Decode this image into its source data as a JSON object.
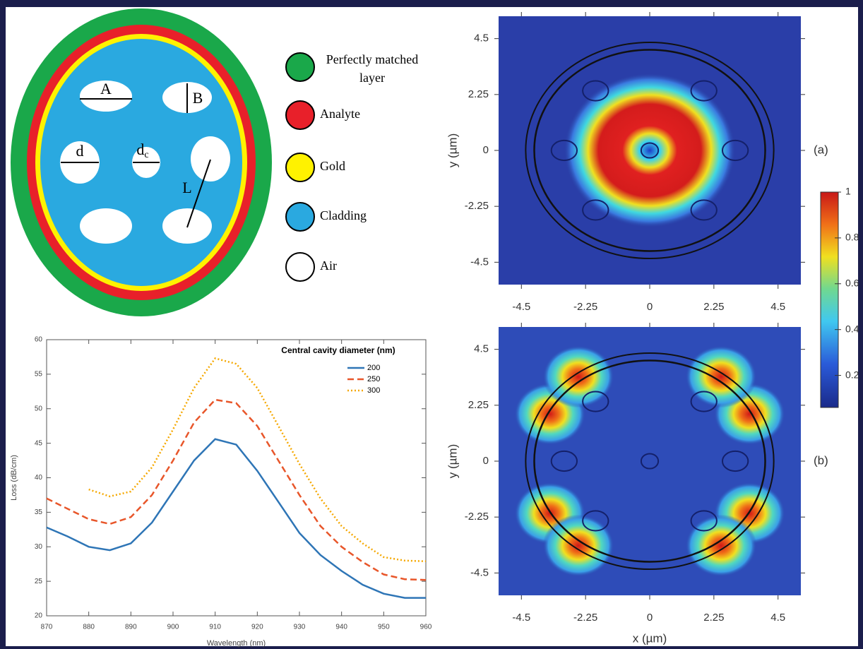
{
  "diagram": {
    "labels": {
      "A": "A",
      "B": "B",
      "d": "d",
      "dc": [
        "d",
        "c"
      ],
      "L": "L"
    },
    "legend": [
      {
        "lines": [
          "Perfectly matched",
          "layer"
        ],
        "color": "#1aa84a"
      },
      {
        "lines": [
          "Analyte"
        ],
        "color": "#e8202a"
      },
      {
        "lines": [
          "Gold"
        ],
        "color": "#fff200"
      },
      {
        "lines": [
          "Cladding"
        ],
        "color": "#2aa9e0"
      },
      {
        "lines": [
          "Air"
        ],
        "color": "#ffffff"
      }
    ]
  },
  "chart_data": [
    {
      "type": "line",
      "x_label": "Wavelength (nm)",
      "y_label": "Loss (dB/cm)",
      "legend_title": "Central cavity diameter (nm)",
      "x": [
        870,
        875,
        880,
        885,
        890,
        895,
        900,
        905,
        910,
        915,
        920,
        925,
        930,
        935,
        940,
        945,
        950,
        955,
        960
      ],
      "series": [
        {
          "name": "200",
          "color": "#2e75b6",
          "dash": "solid",
          "values": [
            32.8,
            31.5,
            30.0,
            29.5,
            30.5,
            33.5,
            38,
            42.5,
            45.6,
            44.8,
            41,
            36.5,
            32,
            28.8,
            26.5,
            24.5,
            23.2,
            22.6,
            22.6
          ]
        },
        {
          "name": "250",
          "color": "#e8562a",
          "dash": "dashed",
          "values": [
            37,
            35.5,
            34,
            33.3,
            34.3,
            37.5,
            42.5,
            48,
            51.3,
            50.8,
            47.5,
            42.5,
            37.5,
            33,
            30,
            27.8,
            26,
            25.3,
            25.2
          ]
        },
        {
          "name": "300",
          "color": "#f5a800",
          "dash": "dotted",
          "values": [
            null,
            null,
            38.3,
            37.3,
            38,
            41.5,
            47,
            53,
            57.3,
            56.5,
            53,
            47.5,
            42,
            37,
            33,
            30.5,
            28.5,
            28,
            27.9
          ]
        }
      ],
      "xlim": [
        870,
        960
      ],
      "ylim": [
        20,
        60
      ],
      "xticks": [
        870,
        880,
        890,
        900,
        910,
        920,
        930,
        940,
        950,
        960
      ],
      "yticks": [
        20,
        25,
        30,
        35,
        40,
        45,
        50,
        55,
        60
      ],
      "grid": false
    },
    {
      "type": "heatmap",
      "x_label": "x (µm)",
      "y_label": "y (µm)",
      "panels": [
        "(a)",
        "(b)"
      ],
      "xlim": [
        -5.3,
        5.3
      ],
      "ylim": [
        -5.4,
        5.4
      ],
      "xticks": [
        -4.5,
        -2.25,
        0,
        2.25,
        4.5
      ],
      "yticks": [
        -4.5,
        -2.25,
        0,
        2.25,
        4.5
      ],
      "colorbar": {
        "lim": [
          0.06,
          1
        ],
        "ticks": [
          0.2,
          0.4,
          0.6,
          0.8,
          1
        ]
      }
    }
  ]
}
